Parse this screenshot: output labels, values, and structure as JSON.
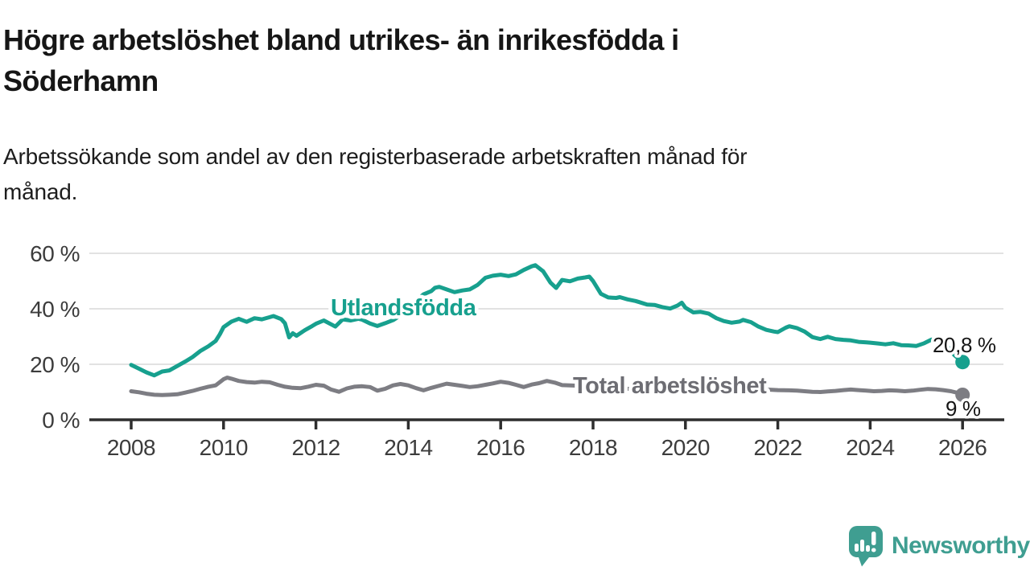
{
  "header": {
    "title_lines": [
      "Högre arbetslöshet bland utrikes- än inrikesfödda i",
      "Söderhamn"
    ],
    "subtitle_lines": [
      "Arbetssökande som andel av den registerbaserade arbetskraften månad för",
      "månad."
    ]
  },
  "branding": {
    "logo_text": "Newsworthy",
    "logo_icon": "newsworthy-speech-bubble-bar-chart-icon"
  },
  "colors": {
    "teal_series": "#17a08e",
    "gray_series": "#7d7d83",
    "gray_series_label": "#6d6d73",
    "grid": "#d9d9d9",
    "axis": "#2e2e2e",
    "axis_text": "#3c3c3c",
    "value_text": "#151515",
    "logo_teal": "#3f9e91",
    "background": "#ffffff"
  },
  "chart_data": {
    "type": "line",
    "title": "Högre arbetslöshet bland utrikes- än inrikesfödda i Söderhamn",
    "subtitle": "Arbetssökande som andel av den registerbaserade arbetskraften månad för månad.",
    "xlabel": "",
    "ylabel": "",
    "grid": true,
    "legend": "inline-labels",
    "x_axis": {
      "range": [
        2008,
        2026
      ],
      "ticks": [
        2008,
        2010,
        2012,
        2014,
        2016,
        2018,
        2020,
        2022,
        2024,
        2026
      ]
    },
    "y_axis": {
      "range": [
        0,
        62
      ],
      "ticks": [
        0,
        20,
        40,
        60
      ],
      "tick_suffix": " %"
    },
    "series": [
      {
        "name": "Utlandsfödda",
        "color": "#17a08e",
        "label_color": "#17a08e",
        "end_value": 20.8,
        "end_label": "20,8 %",
        "points": [
          [
            2008.0,
            19.8
          ],
          [
            2008.17,
            18.4
          ],
          [
            2008.33,
            17.1
          ],
          [
            2008.5,
            16.0
          ],
          [
            2008.67,
            17.4
          ],
          [
            2008.83,
            17.8
          ],
          [
            2009.0,
            19.4
          ],
          [
            2009.17,
            21.0
          ],
          [
            2009.33,
            22.6
          ],
          [
            2009.5,
            24.8
          ],
          [
            2009.67,
            26.5
          ],
          [
            2009.83,
            28.4
          ],
          [
            2009.92,
            30.8
          ],
          [
            2010.0,
            33.4
          ],
          [
            2010.17,
            35.4
          ],
          [
            2010.33,
            36.4
          ],
          [
            2010.5,
            35.3
          ],
          [
            2010.67,
            36.6
          ],
          [
            2010.83,
            36.2
          ],
          [
            2011.0,
            37.0
          ],
          [
            2011.08,
            37.4
          ],
          [
            2011.25,
            36.3
          ],
          [
            2011.33,
            34.8
          ],
          [
            2011.42,
            29.7
          ],
          [
            2011.5,
            31.2
          ],
          [
            2011.58,
            30.3
          ],
          [
            2011.75,
            32.2
          ],
          [
            2011.92,
            33.8
          ],
          [
            2012.0,
            34.6
          ],
          [
            2012.17,
            35.8
          ],
          [
            2012.33,
            34.4
          ],
          [
            2012.42,
            33.6
          ],
          [
            2012.58,
            36.2
          ],
          [
            2012.75,
            35.8
          ],
          [
            2012.92,
            36.4
          ],
          [
            2013.0,
            36.1
          ],
          [
            2013.17,
            34.7
          ],
          [
            2013.33,
            33.8
          ],
          [
            2013.5,
            34.8
          ],
          [
            2013.67,
            35.9
          ],
          [
            2013.83,
            37.6
          ],
          [
            2014.0,
            40.2
          ],
          [
            2014.17,
            43.0
          ],
          [
            2014.33,
            45.2
          ],
          [
            2014.5,
            46.4
          ],
          [
            2014.58,
            47.6
          ],
          [
            2014.67,
            47.9
          ],
          [
            2014.83,
            47.0
          ],
          [
            2015.0,
            46.0
          ],
          [
            2015.17,
            46.6
          ],
          [
            2015.33,
            47.0
          ],
          [
            2015.5,
            48.6
          ],
          [
            2015.67,
            51.2
          ],
          [
            2015.83,
            51.9
          ],
          [
            2016.0,
            52.3
          ],
          [
            2016.17,
            51.8
          ],
          [
            2016.33,
            52.4
          ],
          [
            2016.5,
            54.0
          ],
          [
            2016.67,
            55.3
          ],
          [
            2016.75,
            55.7
          ],
          [
            2016.92,
            53.5
          ],
          [
            2017.08,
            49.4
          ],
          [
            2017.2,
            47.5
          ],
          [
            2017.33,
            50.4
          ],
          [
            2017.5,
            49.9
          ],
          [
            2017.67,
            50.9
          ],
          [
            2017.83,
            51.3
          ],
          [
            2017.92,
            51.6
          ],
          [
            2018.0,
            50.0
          ],
          [
            2018.17,
            45.4
          ],
          [
            2018.33,
            44.1
          ],
          [
            2018.5,
            43.9
          ],
          [
            2018.58,
            44.2
          ],
          [
            2018.75,
            43.4
          ],
          [
            2018.92,
            42.8
          ],
          [
            2019.0,
            42.4
          ],
          [
            2019.17,
            41.5
          ],
          [
            2019.33,
            41.4
          ],
          [
            2019.5,
            40.6
          ],
          [
            2019.67,
            40.1
          ],
          [
            2019.83,
            41.2
          ],
          [
            2019.92,
            42.2
          ],
          [
            2020.0,
            40.4
          ],
          [
            2020.17,
            38.7
          ],
          [
            2020.33,
            38.9
          ],
          [
            2020.5,
            38.3
          ],
          [
            2020.67,
            36.6
          ],
          [
            2020.83,
            35.6
          ],
          [
            2021.0,
            35.0
          ],
          [
            2021.17,
            35.4
          ],
          [
            2021.25,
            36.0
          ],
          [
            2021.42,
            35.2
          ],
          [
            2021.58,
            33.6
          ],
          [
            2021.75,
            32.4
          ],
          [
            2021.92,
            31.8
          ],
          [
            2022.0,
            31.6
          ],
          [
            2022.17,
            33.2
          ],
          [
            2022.25,
            33.7
          ],
          [
            2022.42,
            33.0
          ],
          [
            2022.58,
            31.8
          ],
          [
            2022.75,
            29.8
          ],
          [
            2022.92,
            29.1
          ],
          [
            2023.0,
            29.5
          ],
          [
            2023.08,
            29.9
          ],
          [
            2023.25,
            29.1
          ],
          [
            2023.42,
            28.8
          ],
          [
            2023.58,
            28.6
          ],
          [
            2023.75,
            28.1
          ],
          [
            2023.92,
            27.9
          ],
          [
            2024.0,
            27.8
          ],
          [
            2024.17,
            27.5
          ],
          [
            2024.33,
            27.2
          ],
          [
            2024.5,
            27.6
          ],
          [
            2024.67,
            26.9
          ],
          [
            2024.83,
            26.8
          ],
          [
            2025.0,
            26.6
          ],
          [
            2025.17,
            27.6
          ],
          [
            2025.33,
            28.9
          ],
          [
            2025.5,
            28.2
          ],
          [
            2025.67,
            26.4
          ],
          [
            2025.83,
            23.2
          ],
          [
            2026.0,
            20.8
          ]
        ]
      },
      {
        "name": "Total arbetslöshet",
        "color": "#7d7d83",
        "label_color": "#6d6d73",
        "end_value": 9,
        "end_label": "9 %",
        "points": [
          [
            2008.0,
            10.3
          ],
          [
            2008.17,
            9.9
          ],
          [
            2008.33,
            9.4
          ],
          [
            2008.5,
            9.0
          ],
          [
            2008.67,
            8.9
          ],
          [
            2008.83,
            9.0
          ],
          [
            2009.0,
            9.2
          ],
          [
            2009.17,
            9.8
          ],
          [
            2009.33,
            10.4
          ],
          [
            2009.5,
            11.2
          ],
          [
            2009.67,
            11.9
          ],
          [
            2009.83,
            12.4
          ],
          [
            2010.0,
            14.6
          ],
          [
            2010.08,
            15.2
          ],
          [
            2010.17,
            14.8
          ],
          [
            2010.33,
            14.0
          ],
          [
            2010.5,
            13.6
          ],
          [
            2010.67,
            13.4
          ],
          [
            2010.83,
            13.7
          ],
          [
            2011.0,
            13.5
          ],
          [
            2011.17,
            12.6
          ],
          [
            2011.33,
            11.9
          ],
          [
            2011.5,
            11.5
          ],
          [
            2011.67,
            11.4
          ],
          [
            2011.83,
            11.9
          ],
          [
            2012.0,
            12.6
          ],
          [
            2012.17,
            12.3
          ],
          [
            2012.33,
            10.9
          ],
          [
            2012.5,
            10.1
          ],
          [
            2012.67,
            11.3
          ],
          [
            2012.83,
            11.9
          ],
          [
            2013.0,
            12.1
          ],
          [
            2013.17,
            11.8
          ],
          [
            2013.33,
            10.5
          ],
          [
            2013.5,
            11.2
          ],
          [
            2013.67,
            12.4
          ],
          [
            2013.83,
            12.9
          ],
          [
            2014.0,
            12.4
          ],
          [
            2014.17,
            11.4
          ],
          [
            2014.33,
            10.6
          ],
          [
            2014.5,
            11.5
          ],
          [
            2014.67,
            12.3
          ],
          [
            2014.83,
            13.0
          ],
          [
            2015.0,
            12.6
          ],
          [
            2015.17,
            12.2
          ],
          [
            2015.33,
            11.8
          ],
          [
            2015.5,
            12.1
          ],
          [
            2015.67,
            12.6
          ],
          [
            2015.83,
            13.1
          ],
          [
            2016.0,
            13.7
          ],
          [
            2016.17,
            13.3
          ],
          [
            2016.33,
            12.6
          ],
          [
            2016.5,
            11.8
          ],
          [
            2016.67,
            12.7
          ],
          [
            2016.83,
            13.2
          ],
          [
            2017.0,
            14.0
          ],
          [
            2017.17,
            13.4
          ],
          [
            2017.33,
            12.5
          ],
          [
            2017.5,
            12.4
          ],
          [
            2017.67,
            12.3
          ],
          [
            2017.83,
            12.6
          ],
          [
            2018.0,
            12.8
          ],
          [
            2018.25,
            12.1
          ],
          [
            2018.5,
            11.5
          ],
          [
            2018.75,
            11.2
          ],
          [
            2019.0,
            11.0
          ],
          [
            2019.25,
            10.7
          ],
          [
            2019.5,
            10.6
          ],
          [
            2019.75,
            10.8
          ],
          [
            2020.0,
            11.2
          ],
          [
            2020.25,
            12.3
          ],
          [
            2020.5,
            12.9
          ],
          [
            2020.75,
            12.4
          ],
          [
            2021.0,
            11.8
          ],
          [
            2021.25,
            11.4
          ],
          [
            2021.5,
            11.1
          ],
          [
            2021.75,
            10.9
          ],
          [
            2022.0,
            10.7
          ],
          [
            2022.25,
            10.6
          ],
          [
            2022.42,
            10.5
          ],
          [
            2022.58,
            10.3
          ],
          [
            2022.75,
            10.1
          ],
          [
            2022.92,
            10.0
          ],
          [
            2023.08,
            10.2
          ],
          [
            2023.25,
            10.4
          ],
          [
            2023.42,
            10.7
          ],
          [
            2023.58,
            10.9
          ],
          [
            2023.75,
            10.7
          ],
          [
            2023.92,
            10.5
          ],
          [
            2024.08,
            10.3
          ],
          [
            2024.25,
            10.4
          ],
          [
            2024.42,
            10.6
          ],
          [
            2024.58,
            10.5
          ],
          [
            2024.75,
            10.3
          ],
          [
            2024.92,
            10.5
          ],
          [
            2025.08,
            10.8
          ],
          [
            2025.25,
            11.1
          ],
          [
            2025.42,
            11.0
          ],
          [
            2025.58,
            10.7
          ],
          [
            2025.75,
            10.3
          ],
          [
            2025.92,
            9.6
          ],
          [
            2026.0,
            9.0
          ]
        ]
      }
    ]
  }
}
